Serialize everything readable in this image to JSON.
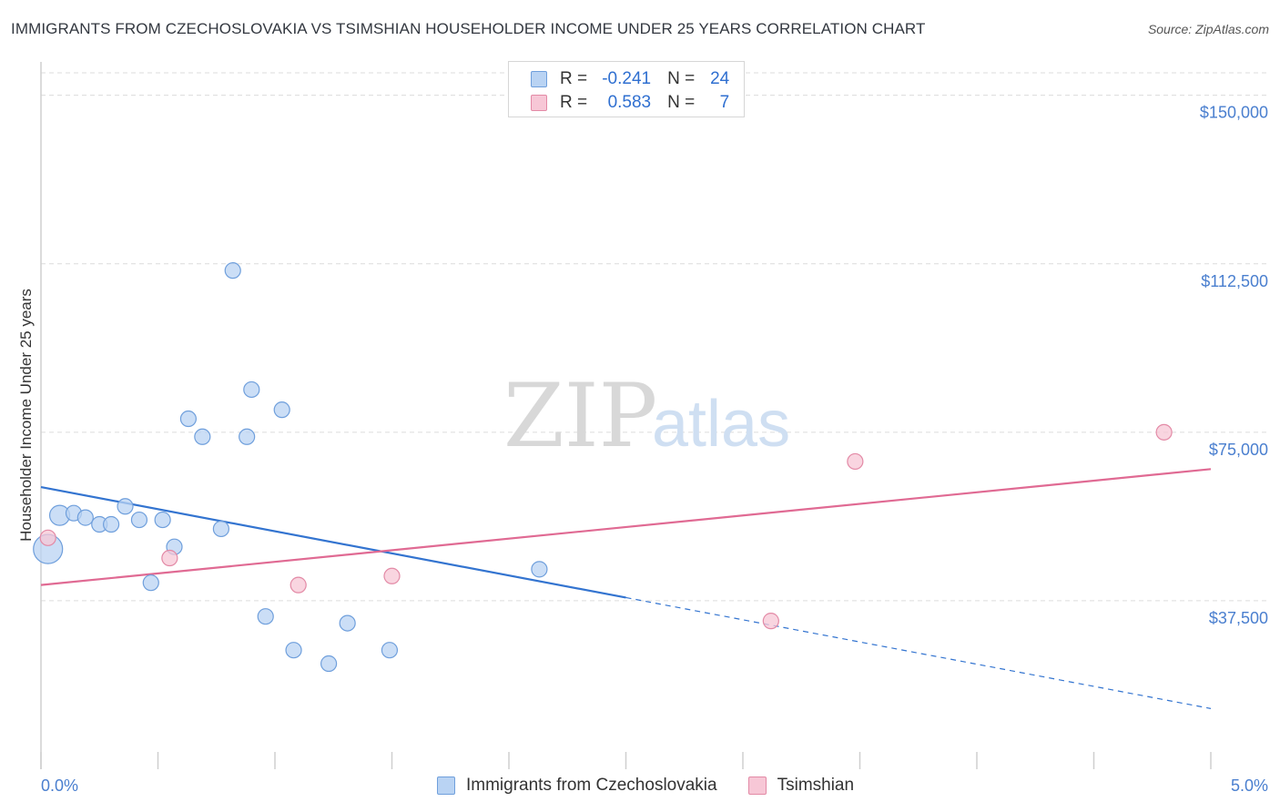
{
  "title": "IMMIGRANTS FROM CZECHOSLOVAKIA VS TSIMSHIAN HOUSEHOLDER INCOME UNDER 25 YEARS CORRELATION CHART",
  "source": "Source: ZipAtlas.com",
  "watermark": {
    "zip": "ZIP",
    "atlas": "atlas"
  },
  "colors": {
    "blue_fill": "#b9d3f3",
    "blue_stroke": "#6f9fdc",
    "blue_line": "#3374d0",
    "pink_fill": "#f7c7d6",
    "pink_stroke": "#e38aa6",
    "pink_line": "#e06a93",
    "tick_text": "#4a7fcf",
    "grid": "#dcdcdc"
  },
  "legend": {
    "rows": [
      {
        "r_label": "R =",
        "r_value": "-0.241",
        "n_label": "N =",
        "n_value": "24"
      },
      {
        "r_label": "R =",
        "r_value": "0.583",
        "n_label": "N =",
        "n_value": "7"
      }
    ]
  },
  "bottom_legend": [
    "Immigrants from Czechoslovakia",
    "Tsimshian"
  ],
  "chart_data": {
    "type": "scatter",
    "title": "IMMIGRANTS FROM CZECHOSLOVAKIA VS TSIMSHIAN HOUSEHOLDER INCOME UNDER 25 YEARS CORRELATION CHART",
    "xlabel": "",
    "ylabel": "Householder Income Under 25 years",
    "xlim": [
      0,
      5
    ],
    "ylim": [
      0,
      155000
    ],
    "x_tick_labels": [
      "0.0%",
      "5.0%"
    ],
    "y_ticks": [
      37500,
      75000,
      112500,
      150000
    ],
    "y_tick_labels": [
      "$37,500",
      "$75,000",
      "$112,500",
      "$150,000"
    ],
    "grid": true,
    "series": [
      {
        "name": "Immigrants from Czechoslovakia",
        "points": [
          {
            "x": 0.03,
            "y": 49000,
            "size": 3
          },
          {
            "x": 0.08,
            "y": 56500,
            "size": 2
          },
          {
            "x": 0.14,
            "y": 57000,
            "size": 1
          },
          {
            "x": 0.19,
            "y": 56000,
            "size": 1
          },
          {
            "x": 0.25,
            "y": 54500,
            "size": 1
          },
          {
            "x": 0.3,
            "y": 54500,
            "size": 1
          },
          {
            "x": 0.36,
            "y": 58500,
            "size": 1
          },
          {
            "x": 0.42,
            "y": 55500,
            "size": 1
          },
          {
            "x": 0.47,
            "y": 41500,
            "size": 1
          },
          {
            "x": 0.52,
            "y": 55500,
            "size": 1
          },
          {
            "x": 0.57,
            "y": 49500,
            "size": 1
          },
          {
            "x": 0.63,
            "y": 78000,
            "size": 1
          },
          {
            "x": 0.69,
            "y": 74000,
            "size": 1
          },
          {
            "x": 0.77,
            "y": 53500,
            "size": 1
          },
          {
            "x": 0.82,
            "y": 111000,
            "size": 1
          },
          {
            "x": 0.88,
            "y": 74000,
            "size": 1
          },
          {
            "x": 0.9,
            "y": 84500,
            "size": 1
          },
          {
            "x": 0.96,
            "y": 34000,
            "size": 1
          },
          {
            "x": 1.03,
            "y": 80000,
            "size": 1
          },
          {
            "x": 1.08,
            "y": 26500,
            "size": 1
          },
          {
            "x": 1.23,
            "y": 23500,
            "size": 1
          },
          {
            "x": 1.31,
            "y": 32500,
            "size": 1
          },
          {
            "x": 1.49,
            "y": 26500,
            "size": 1
          },
          {
            "x": 2.13,
            "y": 44500,
            "size": 1
          }
        ],
        "trend": {
          "x": [
            0,
            2.5,
            5.0
          ],
          "y": [
            62800,
            38200,
            13500
          ],
          "solid_until_x": 2.5
        }
      },
      {
        "name": "Tsimshian",
        "points": [
          {
            "x": 0.03,
            "y": 51500,
            "size": 1
          },
          {
            "x": 0.55,
            "y": 47000,
            "size": 1
          },
          {
            "x": 1.1,
            "y": 41000,
            "size": 1
          },
          {
            "x": 1.5,
            "y": 43000,
            "size": 1
          },
          {
            "x": 3.12,
            "y": 33000,
            "size": 1
          },
          {
            "x": 3.48,
            "y": 68500,
            "size": 1
          },
          {
            "x": 4.8,
            "y": 75000,
            "size": 1
          }
        ],
        "trend": {
          "x": [
            0,
            5.0
          ],
          "y": [
            41000,
            66800
          ]
        }
      }
    ]
  }
}
